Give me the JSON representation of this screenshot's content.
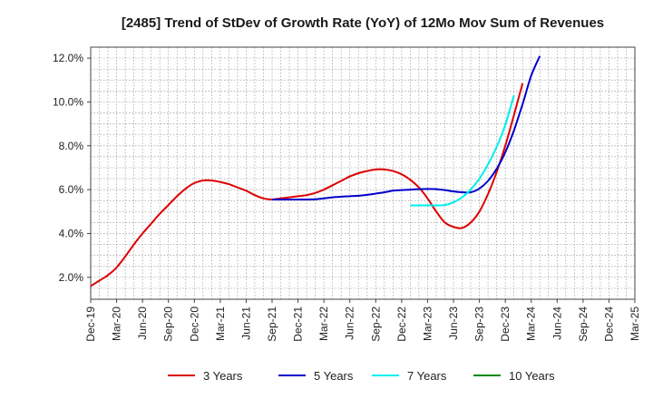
{
  "chart_data": {
    "type": "line",
    "title": "[2485]  Trend of StDev of Growth Rate (YoY) of 12Mo Mov Sum of Revenues",
    "xlabel": "",
    "ylabel": "",
    "ylim": [
      1.0,
      12.5
    ],
    "yticks": [
      2.0,
      4.0,
      6.0,
      8.0,
      10.0,
      12.0
    ],
    "ytick_labels": [
      "2.0%",
      "4.0%",
      "6.0%",
      "8.0%",
      "10.0%",
      "12.0%"
    ],
    "xticks": [
      "Dec-19",
      "Mar-20",
      "Jun-20",
      "Sep-20",
      "Dec-20",
      "Mar-21",
      "Jun-21",
      "Sep-21",
      "Dec-21",
      "Mar-22",
      "Jun-22",
      "Sep-22",
      "Dec-22",
      "Mar-23",
      "Jun-23",
      "Sep-23",
      "Dec-23",
      "Mar-24",
      "Jun-24",
      "Sep-24",
      "Dec-24",
      "Mar-25"
    ],
    "grid": true,
    "legend_position": "bottom",
    "series": [
      {
        "name": "3 Years",
        "color": "#dd0000",
        "points": [
          [
            0,
            1.6
          ],
          [
            1,
            1.85
          ],
          [
            2,
            2.1
          ],
          [
            3,
            2.45
          ],
          [
            4,
            2.95
          ],
          [
            5,
            3.5
          ],
          [
            6,
            4.0
          ],
          [
            7,
            4.45
          ],
          [
            8,
            4.9
          ],
          [
            9,
            5.3
          ],
          [
            10,
            5.7
          ],
          [
            11,
            6.05
          ],
          [
            12,
            6.3
          ],
          [
            13,
            6.42
          ],
          [
            14,
            6.42
          ],
          [
            15,
            6.35
          ],
          [
            16,
            6.25
          ],
          [
            17,
            6.1
          ],
          [
            18,
            5.95
          ],
          [
            19,
            5.75
          ],
          [
            20,
            5.6
          ],
          [
            21,
            5.55
          ],
          [
            22,
            5.6
          ],
          [
            23,
            5.65
          ],
          [
            24,
            5.7
          ],
          [
            25,
            5.75
          ],
          [
            26,
            5.85
          ],
          [
            27,
            6.0
          ],
          [
            28,
            6.2
          ],
          [
            29,
            6.4
          ],
          [
            30,
            6.6
          ],
          [
            31,
            6.75
          ],
          [
            32,
            6.85
          ],
          [
            33,
            6.92
          ],
          [
            34,
            6.92
          ],
          [
            35,
            6.85
          ],
          [
            36,
            6.7
          ],
          [
            37,
            6.45
          ],
          [
            38,
            6.1
          ],
          [
            39,
            5.6
          ],
          [
            40,
            5.0
          ],
          [
            41,
            4.5
          ],
          [
            42,
            4.3
          ],
          [
            43,
            4.25
          ],
          [
            44,
            4.5
          ],
          [
            45,
            5.0
          ],
          [
            46,
            5.8
          ],
          [
            47,
            6.8
          ],
          [
            48,
            8.0
          ],
          [
            49,
            9.4
          ],
          [
            50,
            10.85
          ]
        ]
      },
      {
        "name": "5 Years",
        "color": "#0000cc",
        "points": [
          [
            21,
            5.55
          ],
          [
            22,
            5.55
          ],
          [
            23,
            5.55
          ],
          [
            24,
            5.55
          ],
          [
            25,
            5.55
          ],
          [
            26,
            5.56
          ],
          [
            27,
            5.6
          ],
          [
            28,
            5.65
          ],
          [
            29,
            5.68
          ],
          [
            30,
            5.7
          ],
          [
            31,
            5.72
          ],
          [
            32,
            5.76
          ],
          [
            33,
            5.82
          ],
          [
            34,
            5.88
          ],
          [
            35,
            5.95
          ],
          [
            36,
            5.98
          ],
          [
            37,
            6.0
          ],
          [
            38,
            6.02
          ],
          [
            39,
            6.03
          ],
          [
            40,
            6.02
          ],
          [
            41,
            5.98
          ],
          [
            42,
            5.92
          ],
          [
            43,
            5.88
          ],
          [
            44,
            5.88
          ],
          [
            45,
            6.05
          ],
          [
            46,
            6.4
          ],
          [
            47,
            6.95
          ],
          [
            48,
            7.7
          ],
          [
            49,
            8.7
          ],
          [
            50,
            9.9
          ],
          [
            51,
            11.2
          ],
          [
            52,
            12.1
          ]
        ]
      },
      {
        "name": "7 Years",
        "color": "#00eeee",
        "points": [
          [
            37,
            5.28
          ],
          [
            38,
            5.28
          ],
          [
            39,
            5.28
          ],
          [
            40,
            5.28
          ],
          [
            41,
            5.3
          ],
          [
            42,
            5.42
          ],
          [
            43,
            5.65
          ],
          [
            44,
            6.0
          ],
          [
            45,
            6.5
          ],
          [
            46,
            7.15
          ],
          [
            47,
            7.95
          ],
          [
            48,
            8.95
          ],
          [
            49,
            10.3
          ]
        ]
      },
      {
        "name": "10 Years",
        "color": "#008800",
        "points": []
      }
    ]
  }
}
